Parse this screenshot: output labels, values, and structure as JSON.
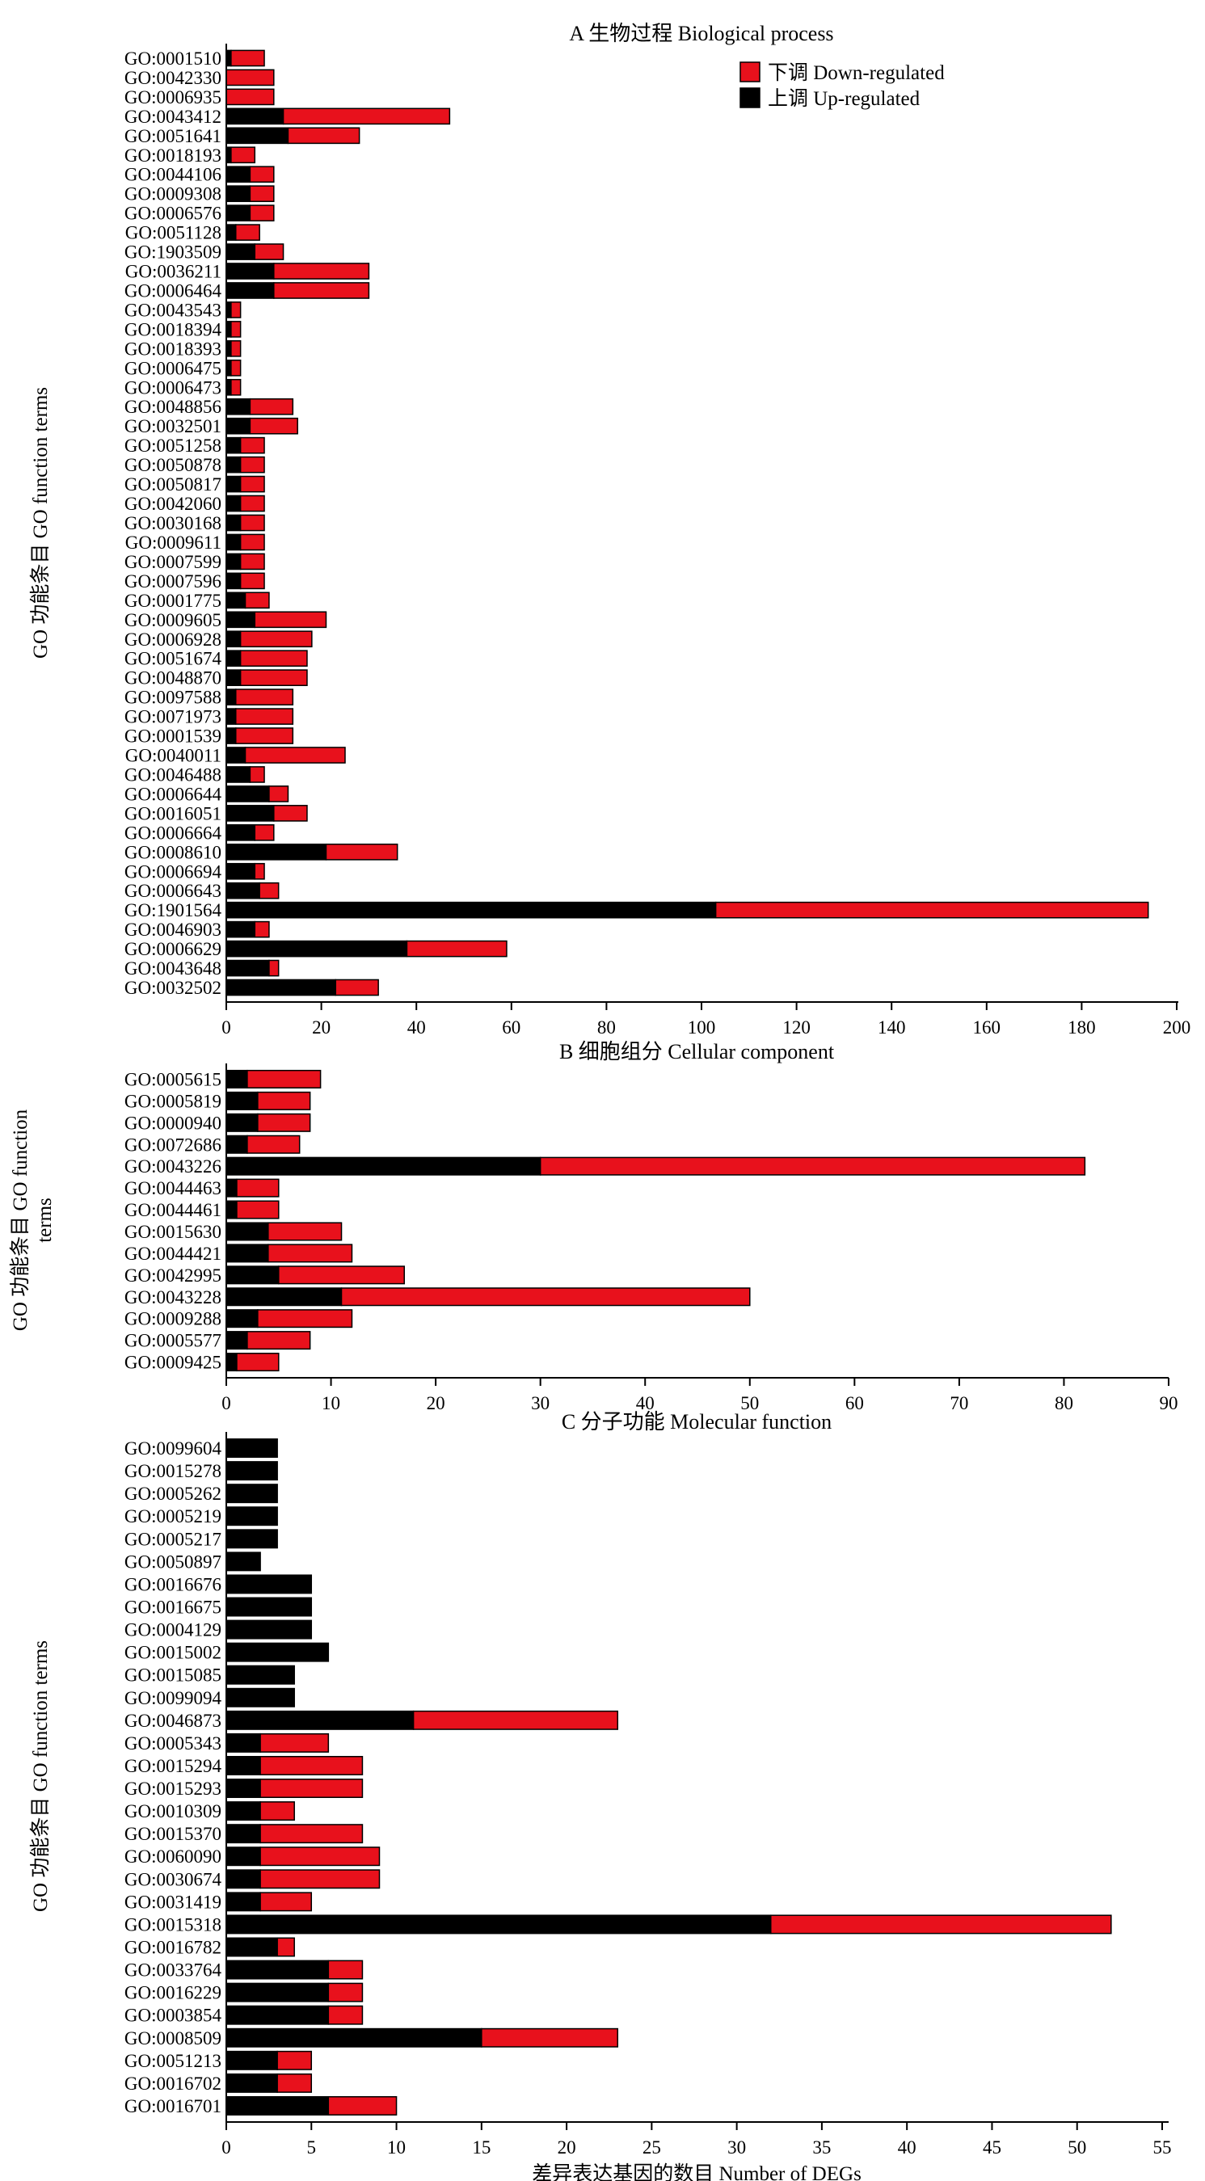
{
  "colors": {
    "up": "#000000",
    "down": "#e8111c",
    "axis": "#000000"
  },
  "legend": {
    "placement": "top-right",
    "down_label": "下调 Down-regulated",
    "up_label": "上调 Up-regulated"
  },
  "chart_data": [
    {
      "type": "bar",
      "orientation": "horizontal",
      "stacked": true,
      "title": "A 生物过程 Biological process",
      "ylabel": "GO 功能条目 GO function terms",
      "ylabel_lines": [
        "GO 功能条目 GO function terms"
      ],
      "xlabel": "",
      "xlim": [
        0,
        210
      ],
      "xticks": [
        0,
        20,
        40,
        60,
        80,
        100,
        120,
        140,
        160,
        180,
        200
      ],
      "categories": [
        "GO:0001510",
        "GO:0042330",
        "GO:0006935",
        "GO:0043412",
        "GO:0051641",
        "GO:0018193",
        "GO:0044106",
        "GO:0009308",
        "GO:0006576",
        "GO:0051128",
        "GO:1903509",
        "GO:0036211",
        "GO:0006464",
        "GO:0043543",
        "GO:0018394",
        "GO:0018393",
        "GO:0006475",
        "GO:0006473",
        "GO:0048856",
        "GO:0032501",
        "GO:0051258",
        "GO:0050878",
        "GO:0050817",
        "GO:0042060",
        "GO:0030168",
        "GO:0009611",
        "GO:0007599",
        "GO:0007596",
        "GO:0001775",
        "GO:0009605",
        "GO:0006928",
        "GO:0051674",
        "GO:0048870",
        "GO:0097588",
        "GO:0071973",
        "GO:0001539",
        "GO:0040011",
        "GO:0046488",
        "GO:0006644",
        "GO:0016051",
        "GO:0006664",
        "GO:0008610",
        "GO:0006694",
        "GO:0006643",
        "GO:1901564",
        "GO:0046903",
        "GO:0006629",
        "GO:0043648",
        "GO:0032502"
      ],
      "series": [
        {
          "name": "上调 Up-regulated",
          "values": [
            1,
            0,
            0,
            12,
            13,
            1,
            5,
            5,
            5,
            2,
            6,
            10,
            10,
            1,
            1,
            1,
            1,
            1,
            5,
            5,
            3,
            3,
            3,
            3,
            3,
            3,
            3,
            3,
            4,
            6,
            3,
            3,
            3,
            2,
            2,
            2,
            4,
            5,
            9,
            10,
            6,
            21,
            6,
            7,
            103,
            6,
            38,
            9,
            23
          ]
        },
        {
          "name": "下调 Down-regulated",
          "values": [
            7,
            10,
            10,
            35,
            15,
            5,
            5,
            5,
            5,
            5,
            6,
            20,
            20,
            2,
            2,
            2,
            2,
            2,
            9,
            10,
            5,
            5,
            5,
            5,
            5,
            5,
            5,
            5,
            5,
            15,
            15,
            14,
            14,
            12,
            12,
            12,
            21,
            3,
            4,
            7,
            4,
            15,
            2,
            4,
            91,
            3,
            21,
            2,
            9
          ]
        }
      ]
    },
    {
      "type": "bar",
      "orientation": "horizontal",
      "stacked": true,
      "title": "B 细胞组分 Cellular component",
      "ylabel": "GO 功能条目 GO function terms",
      "ylabel_lines": [
        "GO 功能条目 GO function",
        "terms"
      ],
      "xlabel": "",
      "xlim": [
        0,
        90
      ],
      "xticks": [
        0,
        10,
        20,
        30,
        40,
        50,
        60,
        70,
        80,
        90
      ],
      "categories": [
        "GO:0005615",
        "GO:0005819",
        "GO:0000940",
        "GO:0072686",
        "GO:0043226",
        "GO:0044463",
        "GO:0044461",
        "GO:0015630",
        "GO:0044421",
        "GO:0042995",
        "GO:0043228",
        "GO:0009288",
        "GO:0005577",
        "GO:0009425"
      ],
      "series": [
        {
          "name": "上调 Up-regulated",
          "values": [
            2,
            3,
            3,
            2,
            30,
            1,
            1,
            4,
            4,
            5,
            11,
            3,
            2,
            1
          ]
        },
        {
          "name": "下调 Down-regulated",
          "values": [
            7,
            5,
            5,
            5,
            52,
            4,
            4,
            7,
            8,
            12,
            39,
            9,
            6,
            4
          ]
        }
      ]
    },
    {
      "type": "bar",
      "orientation": "horizontal",
      "stacked": true,
      "title": "C 分子功能 Molecular function",
      "ylabel": "GO 功能条目 GO function terms",
      "ylabel_lines": [
        "GO 功能条目 GO function terms"
      ],
      "xlabel": "差异表达基因的数目 Number of DEGs",
      "xlim": [
        0,
        56
      ],
      "xticks": [
        0,
        5,
        10,
        15,
        20,
        25,
        30,
        35,
        40,
        45,
        50,
        55
      ],
      "categories": [
        "GO:0099604",
        "GO:0015278",
        "GO:0005262",
        "GO:0005219",
        "GO:0005217",
        "GO:0050897",
        "GO:0016676",
        "GO:0016675",
        "GO:0004129",
        "GO:0015002",
        "GO:0015085",
        "GO:0099094",
        "GO:0046873",
        "GO:0005343",
        "GO:0015294",
        "GO:0015293",
        "GO:0010309",
        "GO:0015370",
        "GO:0060090",
        "GO:0030674",
        "GO:0031419",
        "GO:0015318",
        "GO:0016782",
        "GO:0033764",
        "GO:0016229",
        "GO:0003854",
        "GO:0008509",
        "GO:0051213",
        "GO:0016702",
        "GO:0016701"
      ],
      "series": [
        {
          "name": "上调 Up-regulated",
          "values": [
            3,
            3,
            3,
            3,
            3,
            2,
            5,
            5,
            5,
            6,
            4,
            4,
            11,
            2,
            2,
            2,
            2,
            2,
            2,
            2,
            2,
            32,
            3,
            6,
            6,
            6,
            15,
            3,
            3,
            6
          ]
        },
        {
          "name": "下调 Down-regulated",
          "values": [
            0,
            0,
            0,
            0,
            0,
            0,
            0,
            0,
            0,
            0,
            0,
            0,
            12,
            4,
            6,
            6,
            2,
            6,
            7,
            7,
            3,
            20,
            1,
            2,
            2,
            2,
            8,
            2,
            2,
            4
          ]
        }
      ]
    }
  ]
}
